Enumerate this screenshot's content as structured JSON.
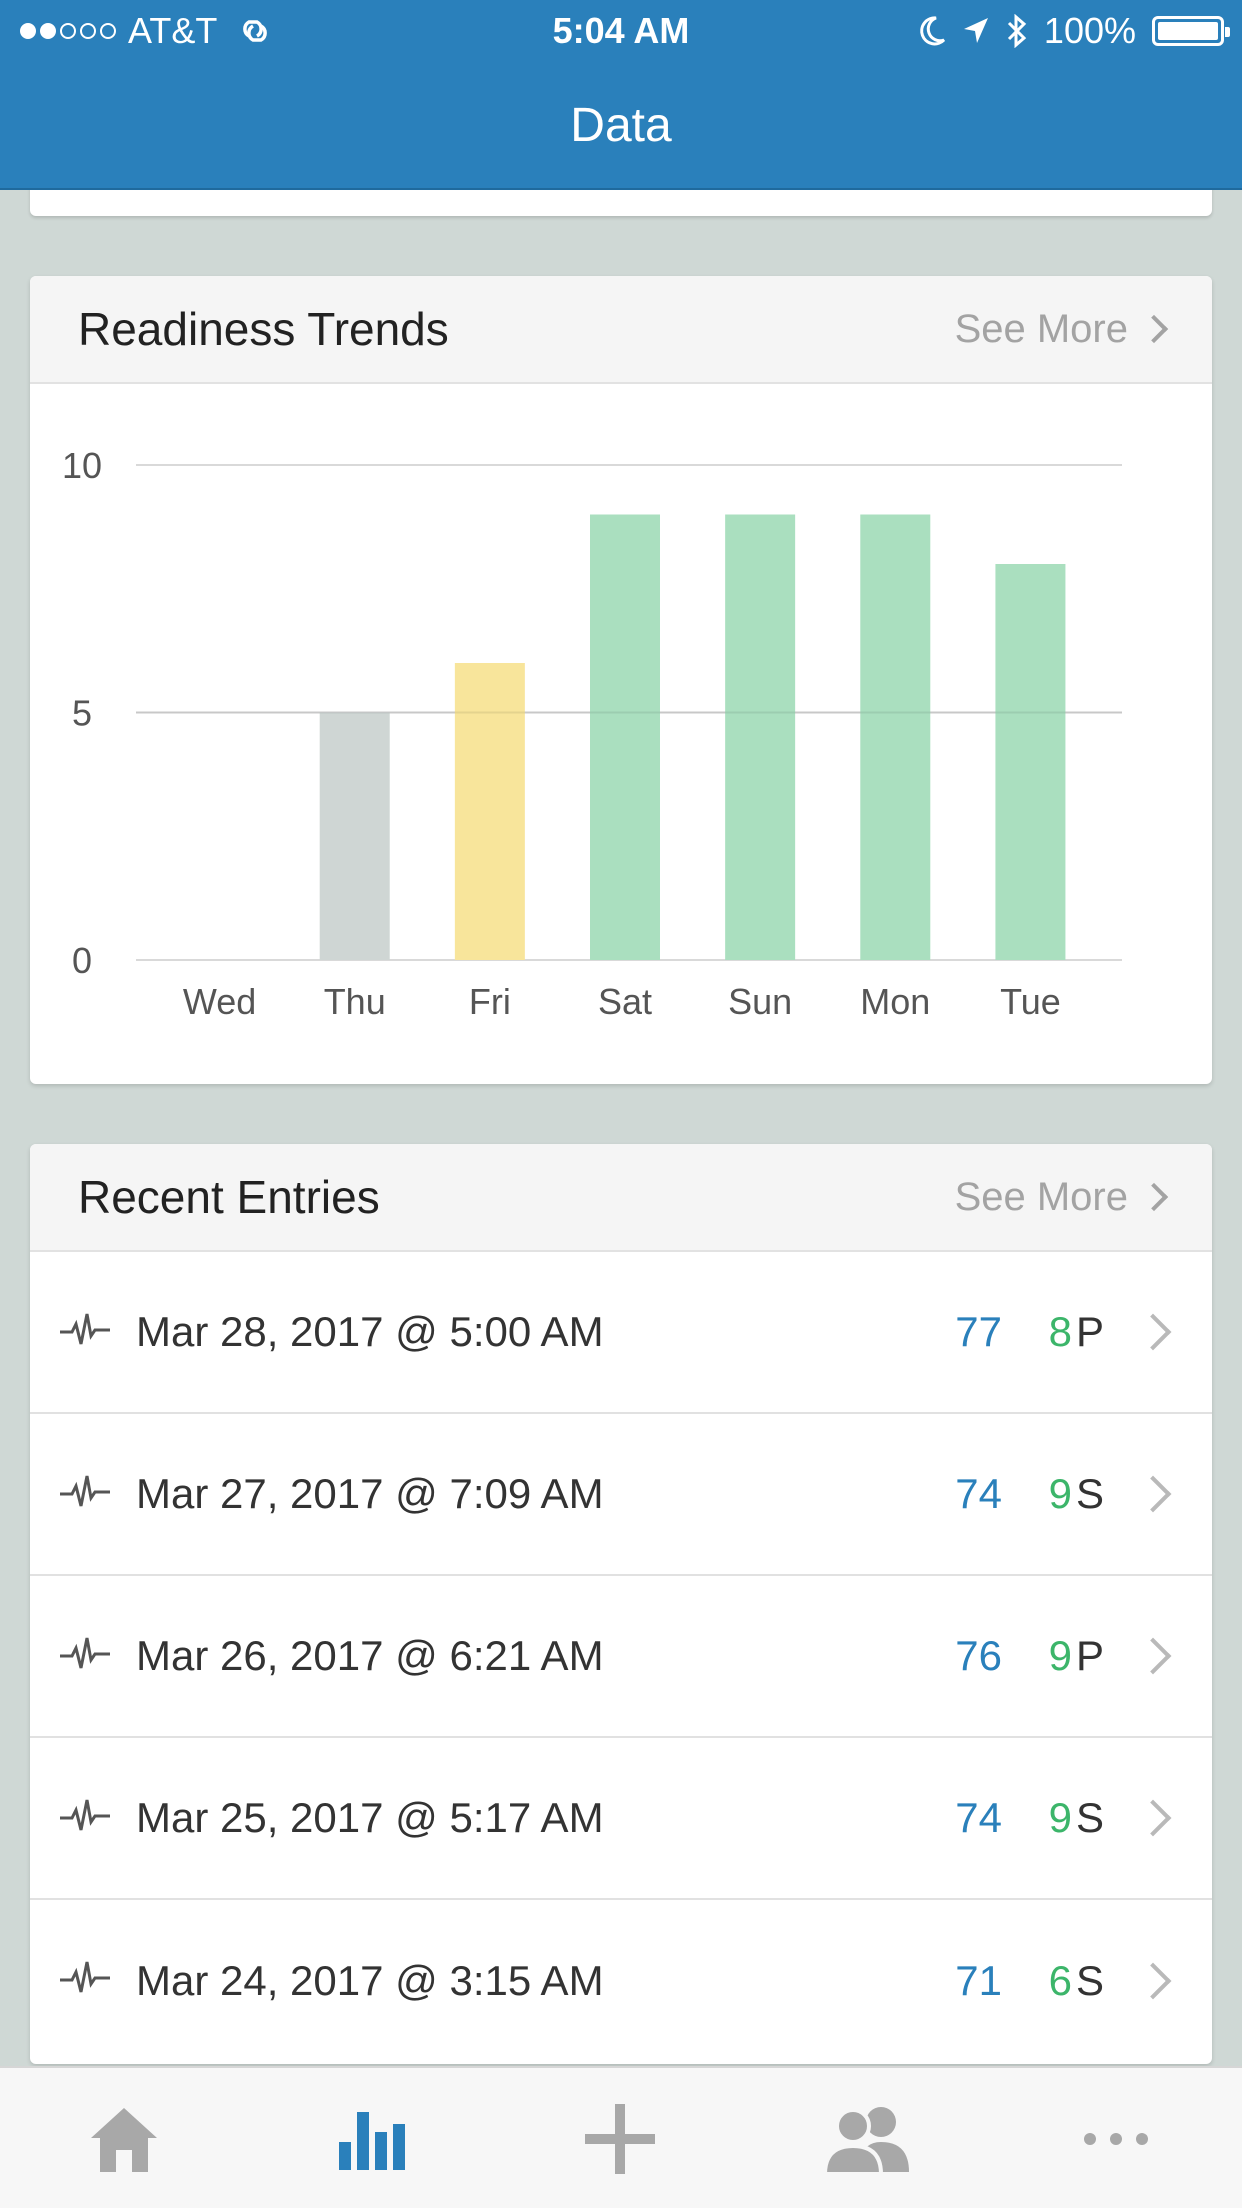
{
  "status_bar": {
    "carrier": "AT&T",
    "time": "5:04 AM",
    "battery": "100%",
    "signal_filled": 2,
    "signal_total": 5
  },
  "nav": {
    "title": "Data"
  },
  "readiness": {
    "title": "Readiness Trends",
    "see_more": "See More"
  },
  "chart_data": {
    "type": "bar",
    "categories": [
      "Wed",
      "Thu",
      "Fri",
      "Sat",
      "Sun",
      "Mon",
      "Tue"
    ],
    "values": [
      0,
      5,
      6,
      9,
      9,
      9,
      8
    ],
    "bar_colors": [
      "#cfd6d4",
      "#cfd6d4",
      "#f8e59b",
      "#aadfbf",
      "#aadfbf",
      "#aadfbf",
      "#aadfbf"
    ],
    "yticks": [
      0,
      5,
      10
    ],
    "ylim": [
      0,
      10
    ],
    "grid": true,
    "title": "",
    "xlabel": "",
    "ylabel": ""
  },
  "recent": {
    "title": "Recent Entries",
    "see_more": "See More",
    "entries": [
      {
        "date": "Mar 28, 2017 @ 5:00 AM",
        "hrv": "77",
        "score": "8",
        "letter": "P"
      },
      {
        "date": "Mar 27, 2017 @ 7:09 AM",
        "hrv": "74",
        "score": "9",
        "letter": "S"
      },
      {
        "date": "Mar 26, 2017 @ 6:21 AM",
        "hrv": "76",
        "score": "9",
        "letter": "P"
      },
      {
        "date": "Mar 25, 2017 @ 5:17 AM",
        "hrv": "74",
        "score": "9",
        "letter": "S"
      },
      {
        "date": "Mar 24, 2017 @ 3:15 AM",
        "hrv": "71",
        "score": "6",
        "letter": "S"
      }
    ]
  },
  "tabbar": {
    "tabs": [
      {
        "icon": "home-icon"
      },
      {
        "icon": "bar-chart-icon",
        "active": true
      },
      {
        "icon": "plus-icon"
      },
      {
        "icon": "people-icon"
      },
      {
        "icon": "more-icon"
      }
    ]
  },
  "colors": {
    "brand_blue": "#2a80bb",
    "score_green": "#3cb56a",
    "tab_inactive": "#a8a8a8"
  }
}
